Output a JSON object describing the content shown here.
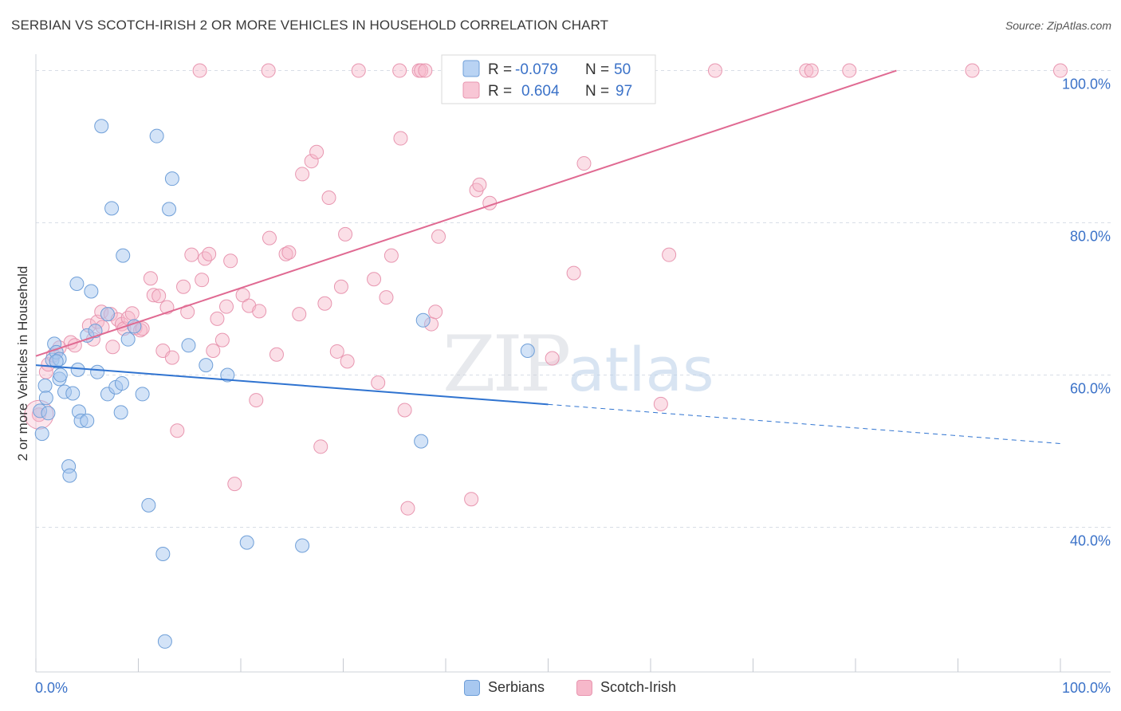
{
  "header": {
    "title": "SERBIAN VS SCOTCH-IRISH 2 OR MORE VEHICLES IN HOUSEHOLD CORRELATION CHART",
    "source": "Source: ZipAtlas.com"
  },
  "watermark": {
    "zip": "ZIP",
    "atlas": "atlas"
  },
  "colors": {
    "blue_fill": "#a8c8f0",
    "blue_stroke": "#6f9fd8",
    "blue_line": "#2f73d0",
    "pink_fill": "#f6b8ca",
    "pink_stroke": "#e896b0",
    "pink_line": "#e06a92",
    "axis_text": "#3b72c8",
    "grid": "#d8dde6"
  },
  "legend_box": {
    "rows": [
      {
        "r_label": "R =",
        "r_value": "-0.079",
        "n_label": "N =",
        "n_value": "50"
      },
      {
        "r_label": "R =",
        "r_value": "0.604",
        "n_label": "N =",
        "n_value": "97"
      }
    ]
  },
  "legend_bottom": {
    "items": [
      "Serbians",
      "Scotch-Irish"
    ]
  },
  "chart_data": {
    "type": "scatter",
    "title": "SERBIAN VS SCOTCH-IRISH 2 OR MORE VEHICLES IN HOUSEHOLD CORRELATION CHART",
    "xlabel": "",
    "ylabel": "2 or more Vehicles in Household",
    "xlim": [
      0,
      100
    ],
    "ylim": [
      21,
      101
    ],
    "x_tick_labels": [
      "0.0%",
      "100.0%"
    ],
    "y_ticks": [
      40,
      60,
      80,
      100
    ],
    "y_tick_labels": [
      "40.0%",
      "60.0%",
      "80.0%",
      "100.0%"
    ],
    "grid": true,
    "legend_position": "top-center",
    "series": [
      {
        "name": "Serbians",
        "r": -0.079,
        "n": 50,
        "trend": {
          "x0": 0,
          "y0": 61.3,
          "x1": 100,
          "y1": 51.0,
          "solid_until": 50
        },
        "points": [
          [
            0.4,
            55.3
          ],
          [
            0.6,
            52.3
          ],
          [
            0.9,
            58.6
          ],
          [
            1.0,
            57.0
          ],
          [
            1.6,
            62.0
          ],
          [
            1.8,
            64.1
          ],
          [
            2.0,
            63.0
          ],
          [
            2.3,
            62.1
          ],
          [
            2.3,
            59.5
          ],
          [
            2.4,
            60.0
          ],
          [
            2.8,
            57.8
          ],
          [
            3.2,
            48.0
          ],
          [
            3.3,
            46.8
          ],
          [
            3.6,
            57.6
          ],
          [
            4.0,
            72.0
          ],
          [
            4.1,
            60.7
          ],
          [
            4.2,
            55.2
          ],
          [
            4.4,
            54.0
          ],
          [
            5.0,
            65.2
          ],
          [
            5.0,
            54.0
          ],
          [
            5.4,
            71.0
          ],
          [
            5.8,
            65.8
          ],
          [
            6.0,
            60.4
          ],
          [
            6.4,
            92.7
          ],
          [
            7.0,
            68.0
          ],
          [
            7.0,
            57.5
          ],
          [
            7.4,
            81.9
          ],
          [
            7.8,
            58.4
          ],
          [
            8.3,
            55.1
          ],
          [
            8.4,
            58.9
          ],
          [
            8.5,
            75.7
          ],
          [
            9.0,
            64.7
          ],
          [
            9.6,
            66.4
          ],
          [
            10.4,
            57.5
          ],
          [
            11.0,
            42.9
          ],
          [
            11.8,
            91.4
          ],
          [
            12.4,
            36.5
          ],
          [
            12.6,
            25.0
          ],
          [
            13.0,
            81.8
          ],
          [
            13.3,
            85.8
          ],
          [
            14.9,
            63.9
          ],
          [
            16.6,
            61.3
          ],
          [
            18.7,
            60.0
          ],
          [
            20.6,
            38.0
          ],
          [
            26.0,
            37.6
          ],
          [
            37.6,
            51.3
          ],
          [
            37.8,
            67.2
          ],
          [
            48.0,
            63.2
          ],
          [
            1.2,
            55.0
          ],
          [
            2.0,
            61.8
          ]
        ]
      },
      {
        "name": "Scotch-Irish",
        "r": 0.604,
        "n": 97,
        "trend": {
          "x0": 0,
          "y0": 62.5,
          "x1": 84.0,
          "y1": 100.0
        },
        "points": [
          [
            0.3,
            54.8
          ],
          [
            1.0,
            60.4
          ],
          [
            1.2,
            61.4
          ],
          [
            1.7,
            62.6
          ],
          [
            2.3,
            63.6
          ],
          [
            3.4,
            64.3
          ],
          [
            3.8,
            63.9
          ],
          [
            5.2,
            66.5
          ],
          [
            5.6,
            64.7
          ],
          [
            6.0,
            67.0
          ],
          [
            6.4,
            68.3
          ],
          [
            6.5,
            66.3
          ],
          [
            7.3,
            68.0
          ],
          [
            7.5,
            63.7
          ],
          [
            8.0,
            67.3
          ],
          [
            8.4,
            66.7
          ],
          [
            8.6,
            66.1
          ],
          [
            9.0,
            67.5
          ],
          [
            9.4,
            68.1
          ],
          [
            9.7,
            66.2
          ],
          [
            10.2,
            65.9
          ],
          [
            10.4,
            66.1
          ],
          [
            11.2,
            72.7
          ],
          [
            11.5,
            70.5
          ],
          [
            12.0,
            70.4
          ],
          [
            12.4,
            63.2
          ],
          [
            12.8,
            68.9
          ],
          [
            13.3,
            62.3
          ],
          [
            13.8,
            52.7
          ],
          [
            14.4,
            71.6
          ],
          [
            14.8,
            68.3
          ],
          [
            15.2,
            75.8
          ],
          [
            16.2,
            72.5
          ],
          [
            16.5,
            75.3
          ],
          [
            16.9,
            75.9
          ],
          [
            17.3,
            63.2
          ],
          [
            17.7,
            67.4
          ],
          [
            18.2,
            64.6
          ],
          [
            18.6,
            69.0
          ],
          [
            19.0,
            75.0
          ],
          [
            19.4,
            45.7
          ],
          [
            20.2,
            70.5
          ],
          [
            20.8,
            69.1
          ],
          [
            21.5,
            56.7
          ],
          [
            21.8,
            68.4
          ],
          [
            22.7,
            100.0
          ],
          [
            22.8,
            78.0
          ],
          [
            23.5,
            62.7
          ],
          [
            24.4,
            75.9
          ],
          [
            24.7,
            76.1
          ],
          [
            25.7,
            68.0
          ],
          [
            26.0,
            86.4
          ],
          [
            26.9,
            88.1
          ],
          [
            27.4,
            89.3
          ],
          [
            27.8,
            50.6
          ],
          [
            28.2,
            69.4
          ],
          [
            28.6,
            83.3
          ],
          [
            29.4,
            63.1
          ],
          [
            29.8,
            71.6
          ],
          [
            30.2,
            78.5
          ],
          [
            30.4,
            61.8
          ],
          [
            31.5,
            100.0
          ],
          [
            33.0,
            72.6
          ],
          [
            34.2,
            70.2
          ],
          [
            34.7,
            75.7
          ],
          [
            35.5,
            100.0
          ],
          [
            35.6,
            91.1
          ],
          [
            36.0,
            55.4
          ],
          [
            36.3,
            42.5
          ],
          [
            37.4,
            100.0
          ],
          [
            37.6,
            100.0
          ],
          [
            38.0,
            100.0
          ],
          [
            38.6,
            66.7
          ],
          [
            39.0,
            68.3
          ],
          [
            39.3,
            78.2
          ],
          [
            40.4,
            100.0
          ],
          [
            42.2,
            100.0
          ],
          [
            42.5,
            43.7
          ],
          [
            43.0,
            84.3
          ],
          [
            43.3,
            85.0
          ],
          [
            44.3,
            82.6
          ],
          [
            50.4,
            62.2
          ],
          [
            52.5,
            73.4
          ],
          [
            53.5,
            87.8
          ],
          [
            56.2,
            100.0
          ],
          [
            61.0,
            56.2
          ],
          [
            61.8,
            75.8
          ],
          [
            66.3,
            100.0
          ],
          [
            75.2,
            100.0
          ],
          [
            75.7,
            100.0
          ],
          [
            79.4,
            100.0
          ],
          [
            91.4,
            100.0
          ],
          [
            100.0,
            100.0
          ],
          [
            44.6,
            100.0
          ],
          [
            33.4,
            59.0
          ],
          [
            16.0,
            100.0
          ],
          [
            52.0,
            100.0
          ]
        ]
      }
    ]
  }
}
